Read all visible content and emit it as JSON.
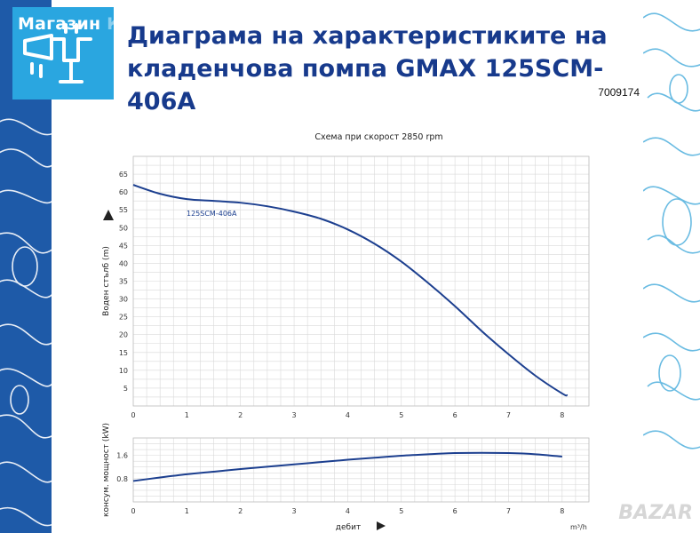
{
  "store": {
    "name_part1": "Магазин ",
    "name_part2": "Капитана"
  },
  "heading": "Диаграма на характеристиките на кладенчова помпа GMAX 125SCM-406A",
  "article_number": "7009174",
  "watermark": "BAZAR",
  "colors": {
    "curve": "#1c3f8f",
    "left_band": "#1e5aa8",
    "logo_bg": "#2aa6e0",
    "grid": "#d9d9d9"
  },
  "chart_data": [
    {
      "type": "line",
      "title": "Схема при скорост 2850 rpm",
      "ylabel": "Воден стълб (m)",
      "xlim": [
        0,
        8.5
      ],
      "ylim": [
        0,
        70
      ],
      "grid": true,
      "x_ticks": [
        "0",
        "1",
        "2",
        "3",
        "4",
        "5",
        "6",
        "7",
        "8"
      ],
      "y_ticks": [
        "5",
        "10",
        "15",
        "20",
        "25",
        "30",
        "35",
        "40",
        "45",
        "50",
        "55",
        "60",
        "65"
      ],
      "series": [
        {
          "name": "125SCM-406A",
          "x": [
            0,
            0.5,
            1,
            1.5,
            2,
            2.5,
            3,
            3.5,
            4,
            4.5,
            5,
            5.5,
            6,
            6.5,
            7,
            7.5,
            8,
            8.1
          ],
          "y": [
            62,
            59.5,
            58,
            57.5,
            57,
            56,
            54.5,
            52.5,
            49.5,
            45.5,
            40.5,
            34.5,
            28,
            21,
            14.5,
            8.5,
            3.5,
            3
          ]
        }
      ]
    },
    {
      "type": "line",
      "ylabel": "консум. мощност (kW)",
      "xlabel": "дебит",
      "x_unit": "m³/h",
      "xlim": [
        0,
        8.5
      ],
      "ylim": [
        0,
        2.2
      ],
      "grid": true,
      "x_ticks": [
        "0",
        "1",
        "2",
        "3",
        "4",
        "5",
        "6",
        "7",
        "8"
      ],
      "y_ticks": [
        "0.8",
        "1.6"
      ],
      "series": [
        {
          "x": [
            0,
            0.5,
            1,
            1.5,
            2,
            2.5,
            3,
            3.5,
            4,
            4.5,
            5,
            5.5,
            6,
            6.5,
            7,
            7.5,
            8
          ],
          "y": [
            0.72,
            0.84,
            0.95,
            1.04,
            1.13,
            1.21,
            1.29,
            1.37,
            1.45,
            1.52,
            1.59,
            1.64,
            1.68,
            1.69,
            1.68,
            1.64,
            1.56
          ]
        }
      ]
    }
  ]
}
